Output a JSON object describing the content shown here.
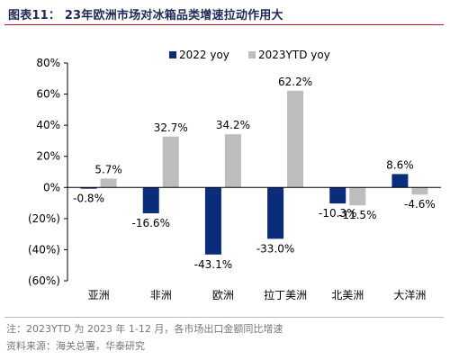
{
  "header": {
    "title": "图表11： 23年欧洲市场对冰箱品类增速拉动作用大"
  },
  "chart_data": {
    "type": "bar",
    "categories": [
      "亚洲",
      "非洲",
      "欧洲",
      "拉丁美洲",
      "北美洲",
      "大洋洲"
    ],
    "series": [
      {
        "name": "2022 yoy",
        "color": "#0b2c7a",
        "values": [
          -0.8,
          -16.6,
          -43.1,
          -33.0,
          -10.3,
          8.6
        ]
      },
      {
        "name": "2023YTD yoy",
        "color": "#bdbdbd",
        "values": [
          5.7,
          32.7,
          34.2,
          62.2,
          -11.5,
          -4.6
        ]
      }
    ],
    "value_labels": [
      [
        "-0.8%",
        "-16.6%",
        "-43.1%",
        "-33.0%",
        "-10.3%",
        "8.6%"
      ],
      [
        "5.7%",
        "32.7%",
        "34.2%",
        "62.2%",
        "-11.5%",
        "-4.6%"
      ]
    ],
    "ylim": [
      -60,
      80
    ],
    "yticks": [
      80,
      60,
      40,
      20,
      0,
      -20,
      -40,
      -60
    ],
    "ytick_labels": [
      "80%",
      "60%",
      "40%",
      "20%",
      "0%",
      "(20%)",
      "(40%)",
      "(60%)"
    ],
    "legend_position": "top",
    "grid": false
  },
  "footer": {
    "note": "注：2023YTD 为 2023 年 1-12 月，各市场出口金额同比增速",
    "source": "资料来源：海关总署，华泰研究"
  }
}
